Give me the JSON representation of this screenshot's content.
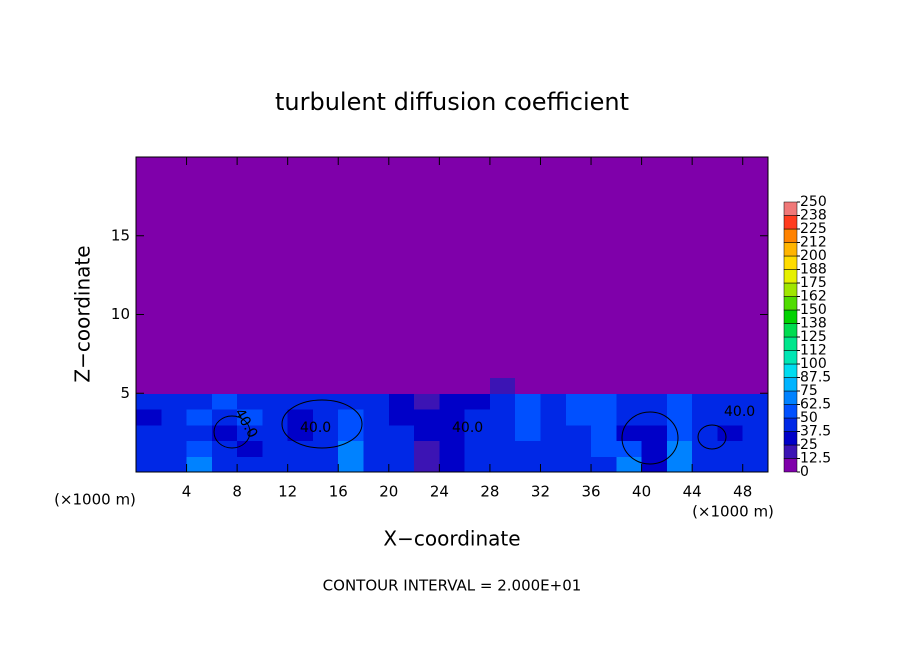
{
  "chart_data": {
    "type": "heatmap",
    "title": "turbulent diffusion coefficient",
    "xlabel": "X−coordinate",
    "ylabel": "Z−coordinate",
    "x_unit_labels": [
      "(×1000 m)",
      "(×1000 m)"
    ],
    "footer": "CONTOUR INTERVAL = 2.000E+01",
    "annotations": [
      "40.0",
      "40.0",
      "40.0",
      "40.0"
    ],
    "xlim": [
      0,
      50
    ],
    "ylim": [
      0,
      20
    ],
    "xticks": [
      4,
      8,
      12,
      16,
      20,
      24,
      28,
      32,
      36,
      40,
      44,
      48
    ],
    "yticks": [
      5,
      10,
      15
    ],
    "xbins": [
      0,
      2,
      4,
      6,
      8,
      10,
      12,
      14,
      16,
      18,
      20,
      22,
      24,
      26,
      28,
      30,
      32,
      34,
      36,
      38,
      40,
      42,
      44,
      46,
      48,
      50
    ],
    "zbins": [
      0,
      1,
      2,
      3,
      4,
      5,
      6,
      20
    ],
    "values": [
      [
        40,
        40,
        70,
        40,
        40,
        40,
        40,
        40,
        70,
        40,
        45,
        20,
        35,
        40,
        40,
        40,
        40,
        40,
        40,
        70,
        35,
        70,
        40,
        40,
        40
      ],
      [
        40,
        45,
        60,
        40,
        35,
        40,
        40,
        45,
        70,
        40,
        40,
        20,
        35,
        45,
        40,
        40,
        45,
        40,
        55,
        60,
        30,
        65,
        40,
        45,
        40
      ],
      [
        45,
        40,
        45,
        35,
        40,
        45,
        35,
        40,
        55,
        40,
        45,
        25,
        30,
        40,
        45,
        50,
        40,
        45,
        60,
        35,
        30,
        55,
        40,
        35,
        45
      ],
      [
        35,
        40,
        50,
        45,
        50,
        40,
        35,
        45,
        50,
        40,
        30,
        25,
        30,
        40,
        45,
        55,
        45,
        60,
        55,
        40,
        45,
        50,
        45,
        40,
        40
      ],
      [
        45,
        40,
        45,
        50,
        40,
        45,
        40,
        45,
        40,
        45,
        30,
        20,
        30,
        35,
        40,
        50,
        40,
        55,
        50,
        45,
        40,
        50,
        40,
        45,
        40
      ],
      [
        5,
        5,
        5,
        5,
        5,
        5,
        5,
        5,
        10,
        5,
        5,
        10,
        5,
        5,
        15,
        5,
        5,
        5,
        10,
        5,
        5,
        5,
        5,
        5,
        5
      ],
      [
        0,
        0,
        0,
        0,
        0,
        0,
        0,
        0,
        0,
        0,
        0,
        0,
        0,
        0,
        0,
        0,
        0,
        0,
        0,
        0,
        0,
        0,
        0,
        0,
        0
      ]
    ],
    "colorbar_ticks": [
      0,
      12.5,
      25,
      37.5,
      50,
      62.5,
      75,
      87.5,
      100,
      {
        "value": 112.5,
        "label": "112"
      },
      125,
      {
        "value": 137.5,
        "label": "138"
      },
      150,
      {
        "value": 162.5,
        "label": "162"
      },
      175,
      {
        "value": 187.5,
        "label": "188"
      },
      200,
      {
        "value": 212.5,
        "label": "212"
      },
      225,
      {
        "value": 237.5,
        "label": "238"
      },
      250
    ],
    "colors": [
      "#7f00aa",
      "#3c14b4",
      "#0000c8",
      "#0028e6",
      "#0050ff",
      "#0082ff",
      "#00b4ff",
      "#00dcf0",
      "#00e6b4",
      "#00e68c",
      "#00dc50",
      "#00d200",
      "#50dc00",
      "#a0e600",
      "#e6f000",
      "#ffdc00",
      "#ffb400",
      "#ff8200",
      "#ff3c1e",
      "#f07878"
    ]
  }
}
